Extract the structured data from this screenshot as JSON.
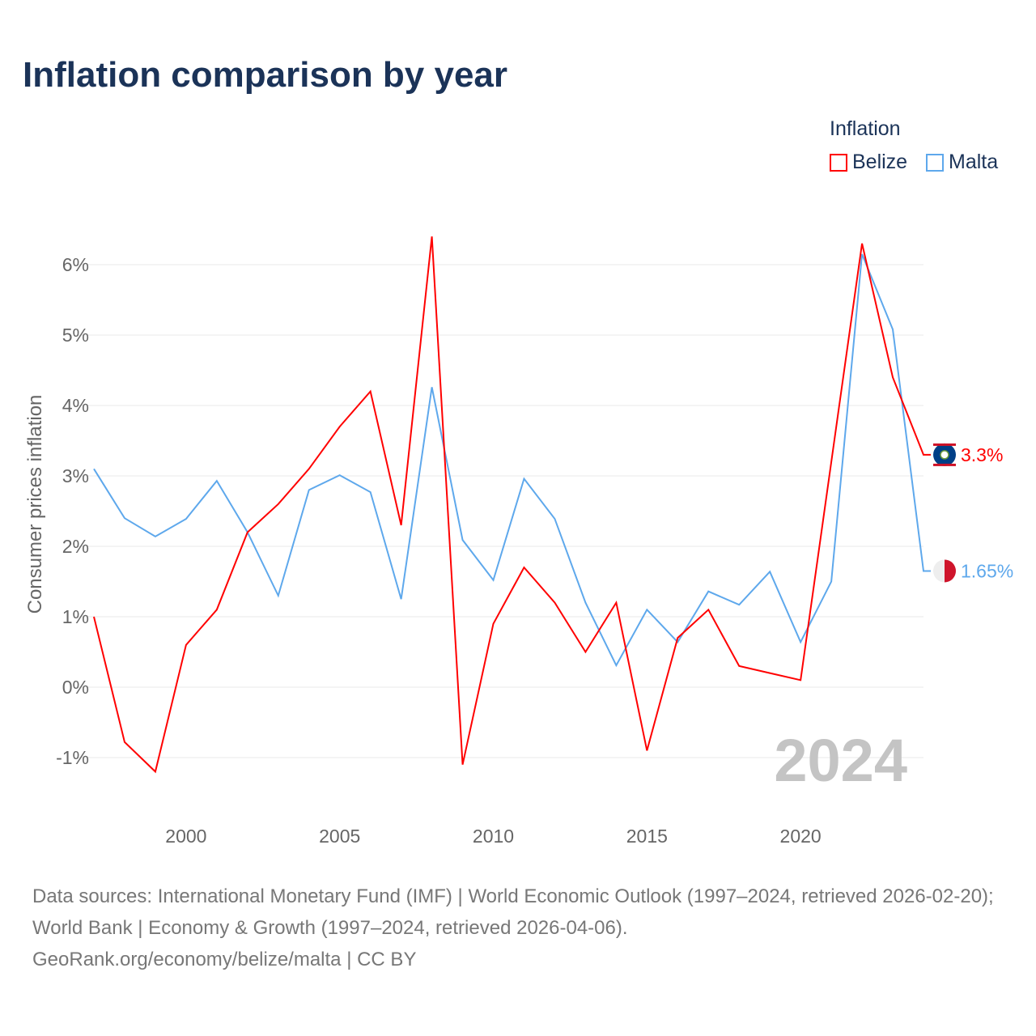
{
  "chart_data": {
    "type": "line",
    "title": "Inflation comparison by year",
    "ylabel": "Consumer prices inflation",
    "xlabel": "",
    "legend_title": "Inflation",
    "legend_placement": "top-right",
    "x": [
      1997,
      1998,
      1999,
      2000,
      2001,
      2002,
      2003,
      2004,
      2005,
      2006,
      2007,
      2008,
      2009,
      2010,
      2011,
      2012,
      2013,
      2014,
      2015,
      2016,
      2017,
      2018,
      2019,
      2020,
      2021,
      2022,
      2023,
      2024
    ],
    "xlim": [
      1997,
      2024
    ],
    "ylim": [
      -1.8,
      6.8
    ],
    "x_ticks": [
      2000,
      2005,
      2010,
      2015,
      2020
    ],
    "y_ticks": [
      -1,
      0,
      1,
      2,
      3,
      4,
      5,
      6
    ],
    "y_tick_labels": [
      "-1%",
      "0%",
      "1%",
      "2%",
      "3%",
      "4%",
      "5%",
      "6%"
    ],
    "year_watermark": "2024",
    "grid": true,
    "series": [
      {
        "name": "Belize",
        "color": "#ff0000",
        "end_label": "3.3%",
        "values": [
          1.0,
          -0.78,
          -1.2,
          0.6,
          1.1,
          2.2,
          2.6,
          3.1,
          3.7,
          4.2,
          2.3,
          6.4,
          -1.1,
          0.9,
          1.7,
          1.2,
          0.5,
          1.2,
          -0.9,
          0.7,
          1.1,
          0.3,
          0.2,
          0.1,
          3.2,
          6.3,
          4.4,
          3.3
        ]
      },
      {
        "name": "Malta",
        "color": "#5ea8ec",
        "end_label": "1.65%",
        "values": [
          3.1,
          2.4,
          2.14,
          2.39,
          2.93,
          2.2,
          1.3,
          2.8,
          3.01,
          2.77,
          1.25,
          4.26,
          2.09,
          1.52,
          2.96,
          2.39,
          1.2,
          0.31,
          1.1,
          0.64,
          1.36,
          1.17,
          1.64,
          0.64,
          1.5,
          6.15,
          5.08,
          1.65
        ]
      }
    ]
  },
  "footer": {
    "sources": "Data sources: International Monetary Fund (IMF) | World Economic Outlook (1997–2024, retrieved 2026-02-20); World Bank | Economy & Growth (1997–2024, retrieved 2026-04-06).",
    "credit": "GeoRank.org/economy/belize/malta | CC BY"
  }
}
